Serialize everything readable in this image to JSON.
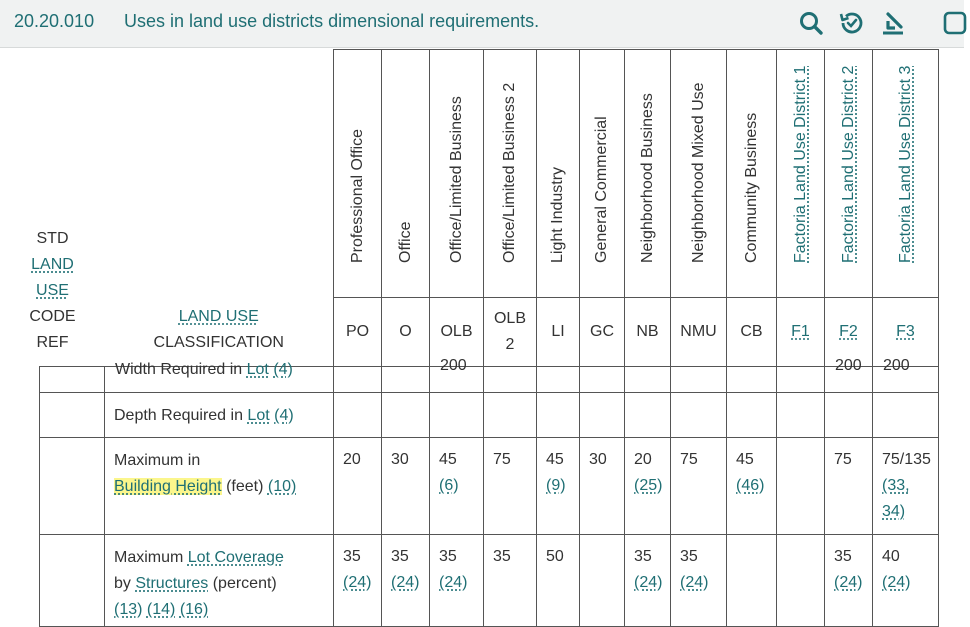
{
  "header": {
    "section_number": "20.20.010",
    "section_title": "Uses in land use districts dimensional requirements.",
    "tools": [
      "search-icon",
      "history-icon",
      "download-icon",
      "checkbox-icon"
    ]
  },
  "table": {
    "std_ref_words": [
      "STD",
      "LAND",
      "USE",
      "CODE",
      "REF"
    ],
    "classification_header": [
      "LAND USE",
      "CLASSIFICATION"
    ],
    "columns": [
      {
        "name": "Professional Office",
        "abbr": "PO",
        "linked": false
      },
      {
        "name": "Office",
        "abbr": "O",
        "linked": false
      },
      {
        "name": "Office/Limited Business",
        "abbr": "OLB",
        "linked": false
      },
      {
        "name": "Office/Limited Business 2",
        "abbr": "OLB 2",
        "linked": false
      },
      {
        "name": "Light Industry",
        "abbr": "LI",
        "linked": false
      },
      {
        "name": "General Commercial",
        "abbr": "GC",
        "linked": false
      },
      {
        "name": "Neighborhood Business",
        "abbr": "NB",
        "linked": false
      },
      {
        "name": "Neighborhood Mixed Use",
        "abbr": "NMU",
        "linked": false
      },
      {
        "name": "Community Business",
        "abbr": "CB",
        "linked": false
      },
      {
        "name": "Factoria Land Use District 1",
        "abbr": "F1",
        "linked": true
      },
      {
        "name": "Factoria Land Use District 2",
        "abbr": "F2",
        "linked": true
      },
      {
        "name": "Factoria Land Use District 3",
        "abbr": "F3",
        "linked": true
      }
    ],
    "rows": [
      {
        "label_parts": [
          {
            "t": "Width Required in "
          },
          {
            "t": "Lot",
            "link": true
          },
          {
            "t": " "
          },
          {
            "t": "(4)",
            "link": true
          }
        ],
        "cut": true,
        "cells": [
          "",
          "",
          "200",
          "",
          "",
          "",
          "",
          "",
          "",
          "",
          "200",
          "200"
        ]
      },
      {
        "label_parts": [
          {
            "t": "Depth Required in "
          },
          {
            "t": "Lot",
            "link": true
          },
          {
            "t": " "
          },
          {
            "t": "(4)",
            "link": true
          }
        ],
        "cells": [
          "",
          "",
          "",
          "",
          "",
          "",
          "",
          "",
          "",
          "",
          "",
          ""
        ]
      },
      {
        "label_parts": [
          {
            "t": "Maximum in "
          },
          {
            "br": true
          },
          {
            "t": "Building Height",
            "hl": true,
            "link": true
          },
          {
            "t": " (feet) "
          },
          {
            "t": "(10)",
            "link": true
          }
        ],
        "cells": [
          [
            {
              "t": "20"
            }
          ],
          [
            {
              "t": "30"
            }
          ],
          [
            {
              "t": "45"
            },
            {
              "t": "(6)",
              "link": true
            }
          ],
          [
            {
              "t": "75"
            }
          ],
          [
            {
              "t": "45"
            },
            {
              "t": "(9)",
              "link": true
            }
          ],
          [
            {
              "t": "30"
            }
          ],
          [
            {
              "t": "20"
            },
            {
              "t": "(25)",
              "link": true
            }
          ],
          [
            {
              "t": "75"
            }
          ],
          [
            {
              "t": "45"
            },
            {
              "t": "(46)",
              "link": true
            }
          ],
          [],
          [
            {
              "t": "75"
            }
          ],
          [
            {
              "t": "75/135"
            },
            {
              "t": "(33,",
              "link": true
            },
            {
              "t": "34)",
              "link": true
            }
          ]
        ]
      },
      {
        "label_parts": [
          {
            "t": "Maximum "
          },
          {
            "t": "Lot Coverage",
            "link": true
          },
          {
            "br": true
          },
          {
            "t": "by "
          },
          {
            "t": "Structures",
            "link": true
          },
          {
            "t": " (percent)"
          },
          {
            "br": true
          },
          {
            "t": "(13)",
            "link": true
          },
          {
            "t": " "
          },
          {
            "t": "(14)",
            "link": true
          },
          {
            "t": " "
          },
          {
            "t": "(16)",
            "link": true
          }
        ],
        "cells": [
          [
            {
              "t": "35"
            },
            {
              "t": "(24)",
              "link": true
            }
          ],
          [
            {
              "t": "35"
            },
            {
              "t": "(24)",
              "link": true
            }
          ],
          [
            {
              "t": "35"
            },
            {
              "t": "(24)",
              "link": true
            }
          ],
          [
            {
              "t": "35"
            }
          ],
          [
            {
              "t": "50"
            }
          ],
          [],
          [
            {
              "t": "35"
            },
            {
              "t": "(24)",
              "link": true
            }
          ],
          [
            {
              "t": "35"
            },
            {
              "t": "(24)",
              "link": true
            }
          ],
          [],
          [],
          [
            {
              "t": "35"
            },
            {
              "t": "(24)",
              "link": true
            }
          ],
          [
            {
              "t": "40"
            },
            {
              "t": "(24)",
              "link": true
            }
          ]
        ]
      }
    ]
  }
}
